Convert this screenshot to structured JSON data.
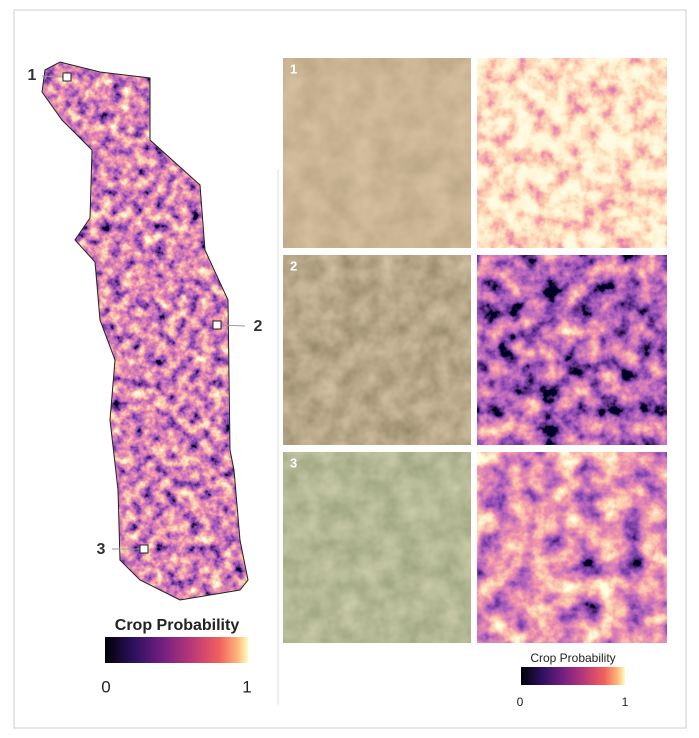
{
  "map": {
    "markers": [
      {
        "label": "1"
      },
      {
        "label": "2"
      },
      {
        "label": "3"
      }
    ],
    "legend": {
      "title": "Crop Probability",
      "min_label": "0",
      "max_label": "1"
    }
  },
  "tiles": [
    {
      "label": "1"
    },
    {
      "label": "2"
    },
    {
      "label": "3"
    }
  ],
  "tile_legend": {
    "title": "Crop Probability",
    "min_label": "0",
    "max_label": "1"
  }
}
